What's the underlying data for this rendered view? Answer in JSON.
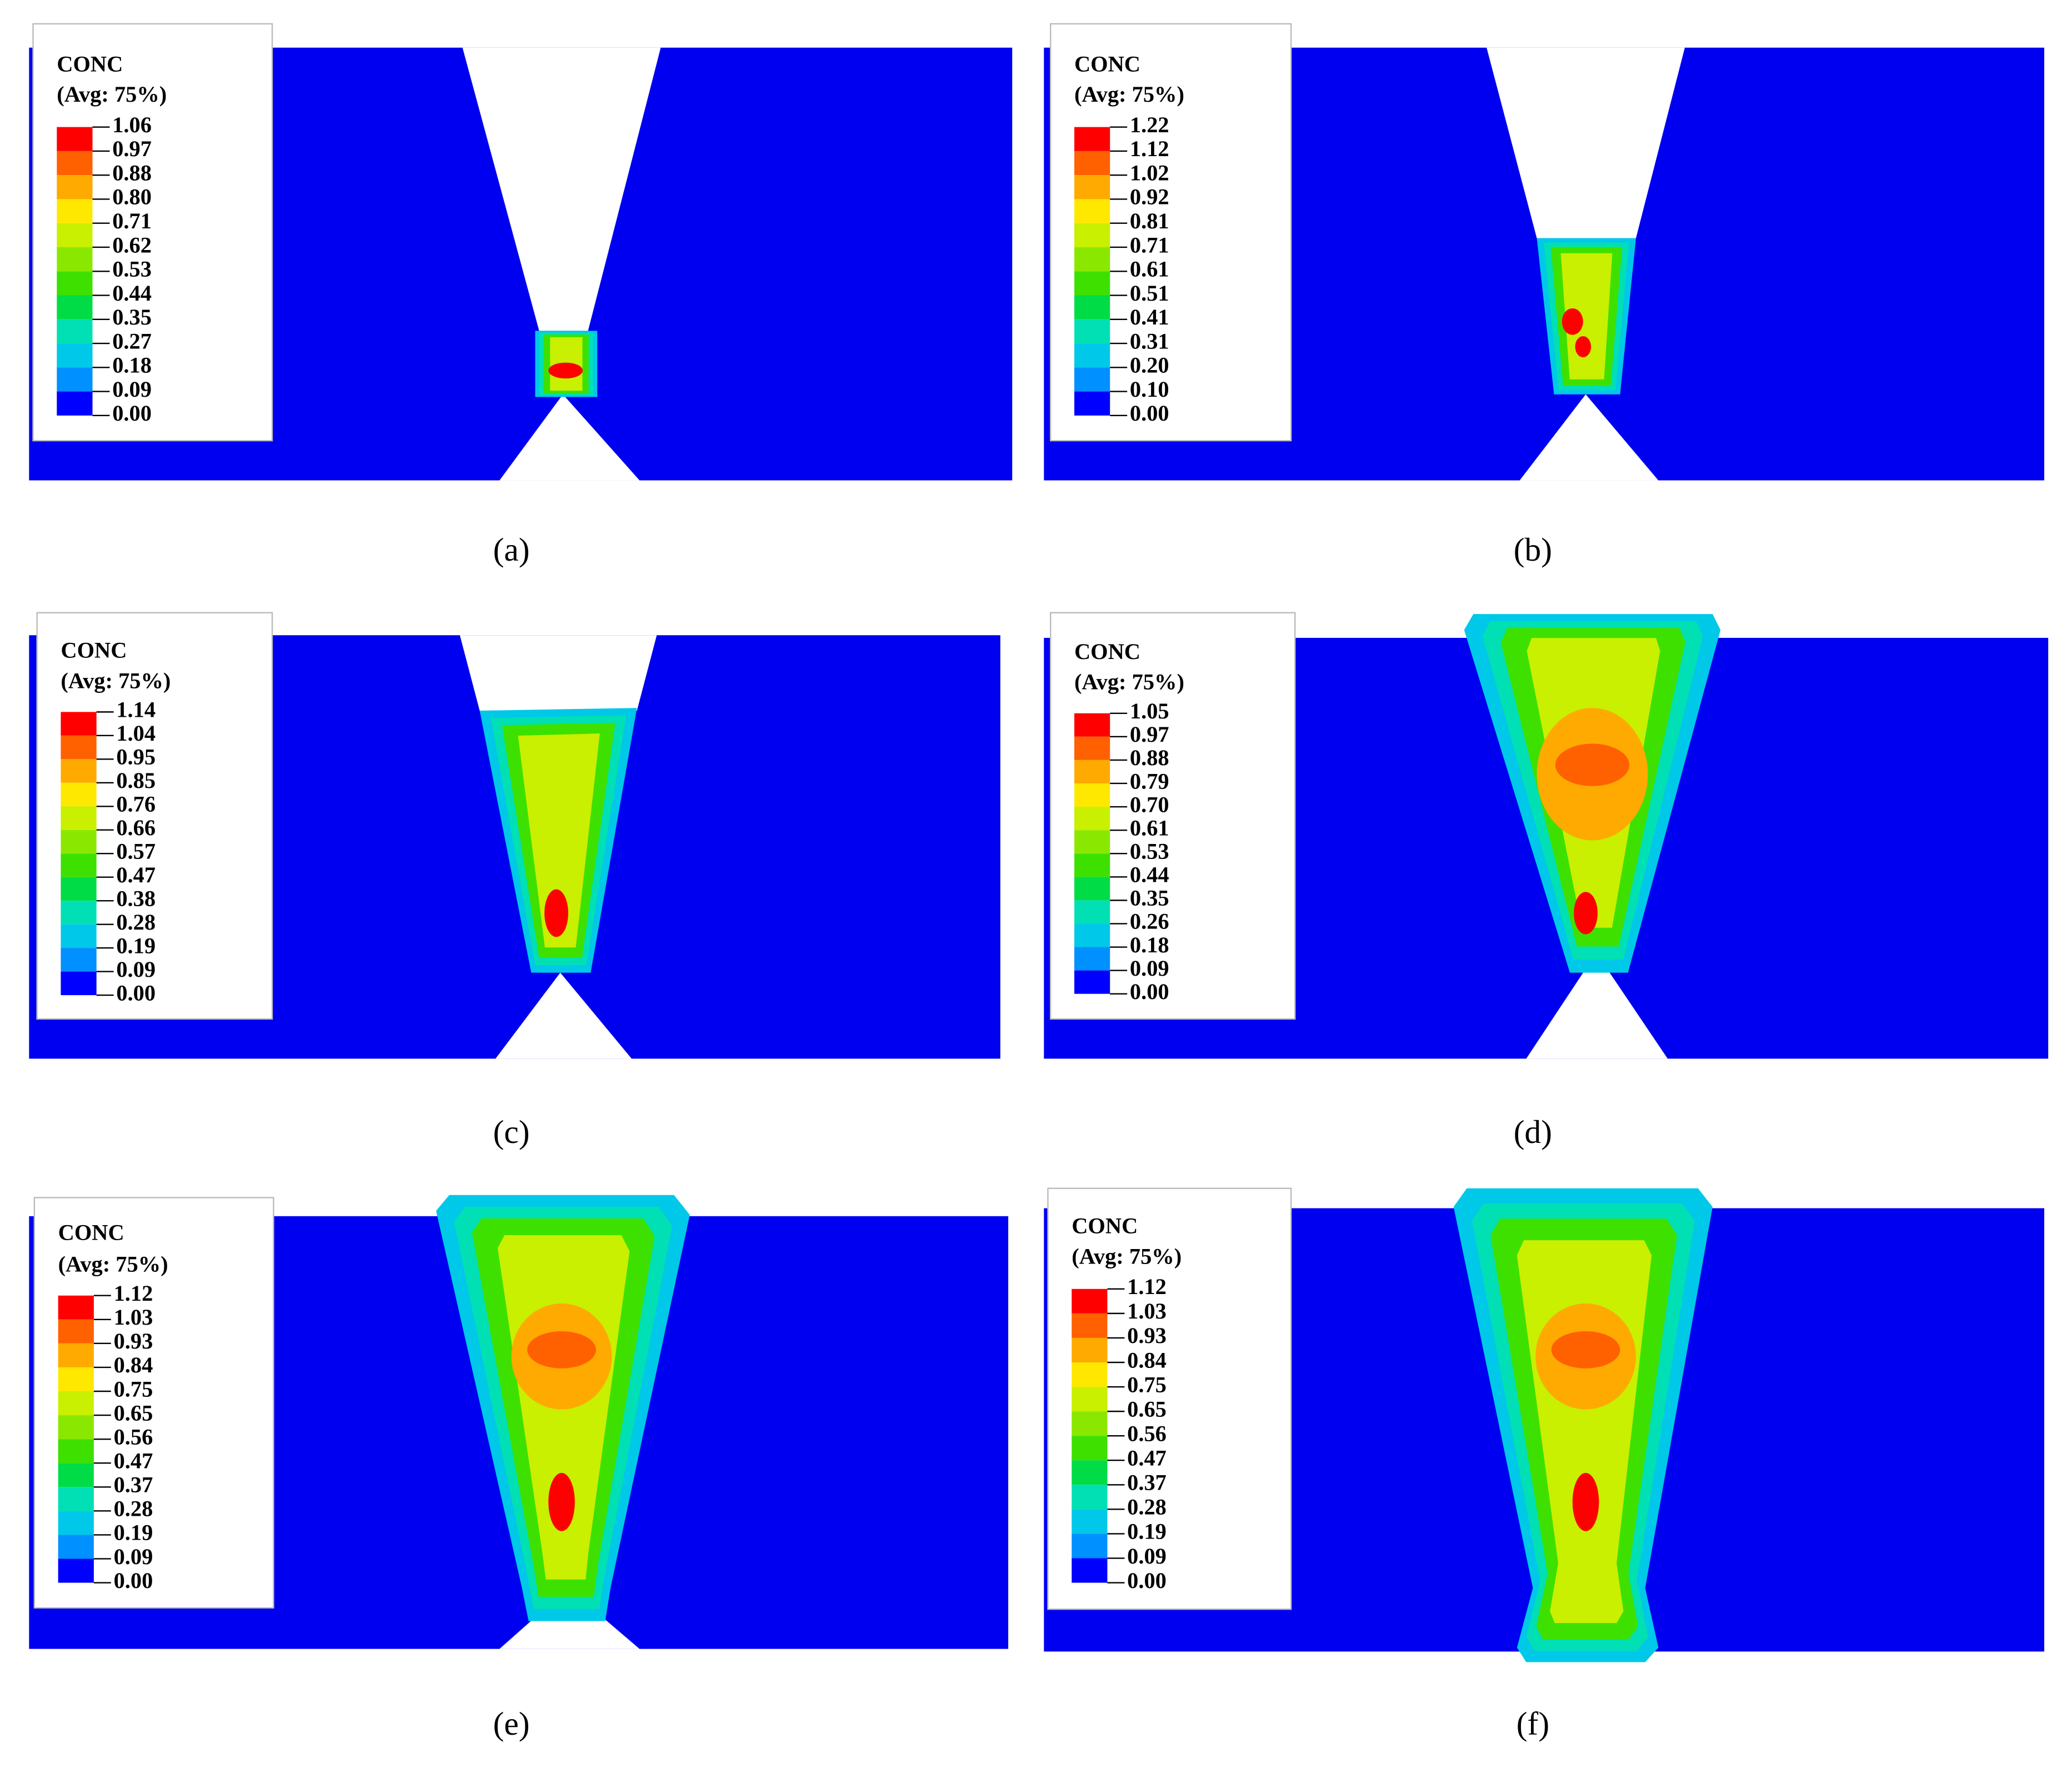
{
  "panels": [
    {
      "caption": "(a)",
      "legend": {
        "title": "CONC",
        "subtitle": "(Avg: 75%)",
        "ticks": [
          "1.06",
          "0.97",
          "0.88",
          "0.80",
          "0.71",
          "0.62",
          "0.53",
          "0.44",
          "0.35",
          "0.27",
          "0.18",
          "0.09",
          "0.00"
        ]
      }
    },
    {
      "caption": "(b)",
      "legend": {
        "title": "CONC",
        "subtitle": "(Avg: 75%)",
        "ticks": [
          "1.22",
          "1.12",
          "1.02",
          "0.92",
          "0.81",
          "0.71",
          "0.61",
          "0.51",
          "0.41",
          "0.31",
          "0.20",
          "0.10",
          "0.00"
        ]
      }
    },
    {
      "caption": "(c)",
      "legend": {
        "title": "CONC",
        "subtitle": "(Avg: 75%)",
        "ticks": [
          "1.14",
          "1.04",
          "0.95",
          "0.85",
          "0.76",
          "0.66",
          "0.57",
          "0.47",
          "0.38",
          "0.28",
          "0.19",
          "0.09",
          "0.00"
        ]
      }
    },
    {
      "caption": "(d)",
      "legend": {
        "title": "CONC",
        "subtitle": "(Avg: 75%)",
        "ticks": [
          "1.05",
          "0.97",
          "0.88",
          "0.79",
          "0.70",
          "0.61",
          "0.53",
          "0.44",
          "0.35",
          "0.26",
          "0.18",
          "0.09",
          "0.00"
        ]
      }
    },
    {
      "caption": "(e)",
      "legend": {
        "title": "CONC",
        "subtitle": "(Avg: 75%)",
        "ticks": [
          "1.12",
          "1.03",
          "0.93",
          "0.84",
          "0.75",
          "0.65",
          "0.56",
          "0.47",
          "0.37",
          "0.28",
          "0.19",
          "0.09",
          "0.00"
        ]
      }
    },
    {
      "caption": "(f)",
      "legend": {
        "title": "CONC",
        "subtitle": "(Avg: 75%)",
        "ticks": [
          "1.12",
          "1.03",
          "0.93",
          "0.84",
          "0.75",
          "0.65",
          "0.56",
          "0.47",
          "0.37",
          "0.28",
          "0.19",
          "0.09",
          "0.00"
        ]
      }
    }
  ],
  "legend_colors": [
    "#ff0000",
    "#ff6000",
    "#ffaa00",
    "#ffe800",
    "#c8f000",
    "#8ae800",
    "#3ee000",
    "#00dc46",
    "#00e0b4",
    "#00c8e8",
    "#0090ff",
    "#0000ff"
  ],
  "plate_color": "#0000f0"
}
